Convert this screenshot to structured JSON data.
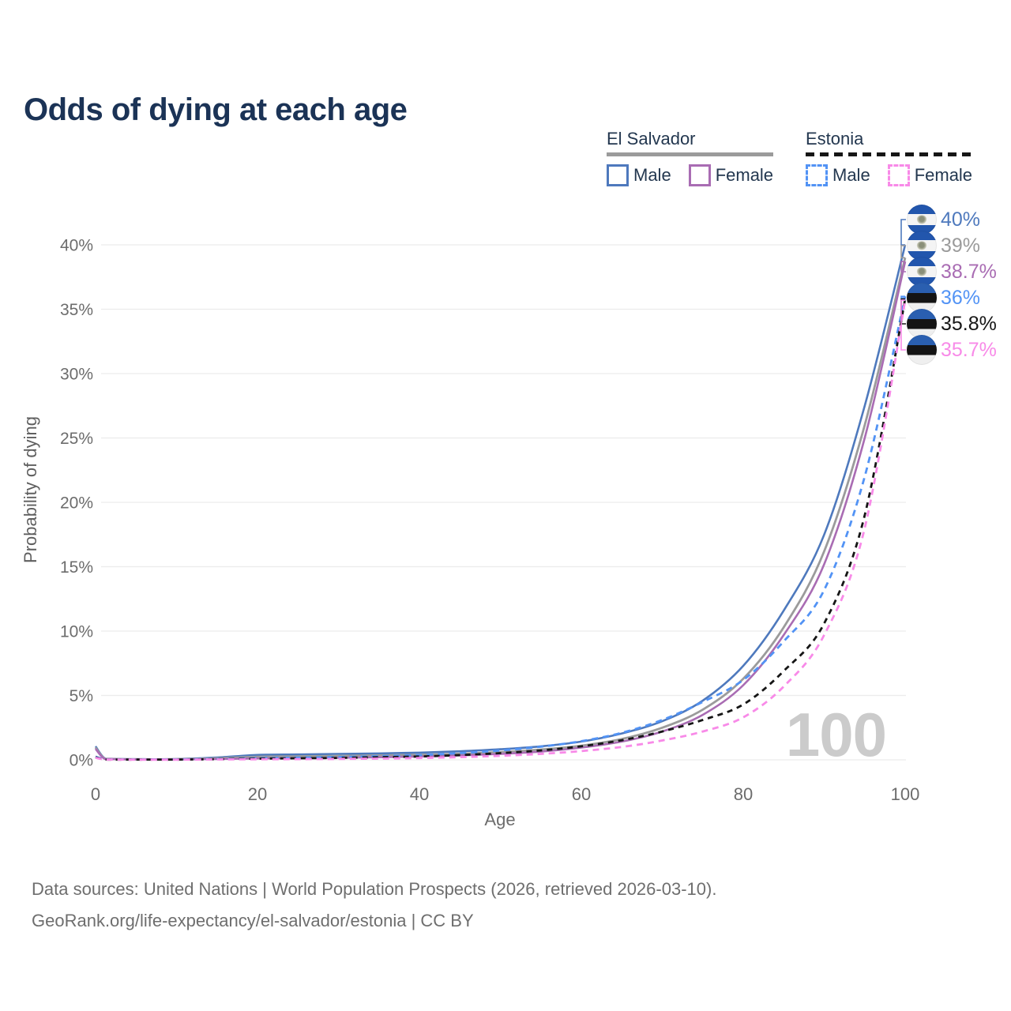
{
  "title": "Odds of dying at each age",
  "legend": {
    "groups": [
      {
        "country": "El Salvador",
        "line_style": "solid",
        "underline_color": "#9b9b9b",
        "items": [
          {
            "label": "Male",
            "color": "#4e79bd"
          },
          {
            "label": "Female",
            "color": "#a96cb3"
          }
        ]
      },
      {
        "country": "Estonia",
        "line_style": "dashed",
        "underline_color": "#161616",
        "items": [
          {
            "label": "Male",
            "color": "#5293f5"
          },
          {
            "label": "Female",
            "color": "#f88ae8"
          }
        ]
      }
    ]
  },
  "chart_data": {
    "type": "line",
    "title": "Odds of dying at each age",
    "xlabel": "Age",
    "ylabel": "Probability of dying",
    "xlim": [
      0,
      100
    ],
    "ylim": [
      0,
      43
    ],
    "grid": true,
    "watermark": "100",
    "x_ticks": [
      0,
      20,
      40,
      60,
      80,
      100
    ],
    "y_ticks": [
      {
        "v": 0,
        "label": "0%"
      },
      {
        "v": 5,
        "label": "5%"
      },
      {
        "v": 10,
        "label": "10%"
      },
      {
        "v": 15,
        "label": "15%"
      },
      {
        "v": 20,
        "label": "20%"
      },
      {
        "v": 25,
        "label": "25%"
      },
      {
        "v": 30,
        "label": "30%"
      },
      {
        "v": 35,
        "label": "35%"
      },
      {
        "v": 40,
        "label": "40%"
      }
    ],
    "ages": [
      0,
      1,
      2,
      5,
      10,
      15,
      20,
      25,
      30,
      35,
      40,
      45,
      50,
      55,
      60,
      65,
      70,
      75,
      80,
      85,
      90,
      95,
      100
    ],
    "series": [
      {
        "id": "el-salvador-male",
        "country": "El Salvador",
        "sex": "Male",
        "color": "#4e79bd",
        "dash": null,
        "width": 2.6,
        "end_label": "40%",
        "values": [
          1.05,
          0.18,
          0.08,
          0.05,
          0.06,
          0.18,
          0.38,
          0.42,
          0.46,
          0.5,
          0.56,
          0.66,
          0.82,
          1.05,
          1.42,
          2.05,
          3.0,
          4.6,
          7.3,
          11.6,
          17.5,
          27.5,
          40
        ]
      },
      {
        "id": "el-salvador-total",
        "country": "El Salvador",
        "sex": "Both",
        "color": "#9b9b9b",
        "dash": null,
        "width": 2.8,
        "end_label": "39%",
        "values": [
          0.95,
          0.15,
          0.07,
          0.04,
          0.05,
          0.12,
          0.24,
          0.27,
          0.3,
          0.34,
          0.39,
          0.47,
          0.6,
          0.8,
          1.1,
          1.62,
          2.5,
          3.9,
          6.3,
          10.3,
          16.2,
          26.0,
          39
        ]
      },
      {
        "id": "el-salvador-female",
        "country": "El Salvador",
        "sex": "Female",
        "color": "#a96cb3",
        "dash": null,
        "width": 2.6,
        "end_label": "38.7%",
        "values": [
          0.85,
          0.12,
          0.06,
          0.035,
          0.03,
          0.07,
          0.11,
          0.13,
          0.16,
          0.2,
          0.26,
          0.34,
          0.46,
          0.64,
          0.95,
          1.42,
          2.2,
          3.5,
          5.8,
          9.7,
          15.2,
          25.0,
          38.7
        ]
      },
      {
        "id": "estonia-male",
        "country": "Estonia",
        "sex": "Male",
        "color": "#5293f5",
        "dash": "8 6",
        "width": 2.8,
        "end_label": "36%",
        "values": [
          0.25,
          0.05,
          0.03,
          0.025,
          0.03,
          0.07,
          0.13,
          0.17,
          0.22,
          0.28,
          0.37,
          0.52,
          0.73,
          1.02,
          1.45,
          2.1,
          3.1,
          4.5,
          6.2,
          9.2,
          13.2,
          22.0,
          36
        ]
      },
      {
        "id": "estonia-total",
        "country": "Estonia",
        "sex": "Both",
        "color": "#161616",
        "dash": "7 6",
        "width": 2.8,
        "end_label": "35.8%",
        "values": [
          0.2,
          0.04,
          0.02,
          0.02,
          0.02,
          0.05,
          0.09,
          0.12,
          0.15,
          0.2,
          0.26,
          0.37,
          0.52,
          0.73,
          1.05,
          1.52,
          2.2,
          3.1,
          4.3,
          6.9,
          10.6,
          19.0,
          35.8
        ]
      },
      {
        "id": "estonia-female",
        "country": "Estonia",
        "sex": "Female",
        "color": "#f88ae8",
        "dash": "8 6",
        "width": 2.8,
        "end_label": "35.7%",
        "values": [
          0.16,
          0.03,
          0.02,
          0.015,
          0.015,
          0.03,
          0.045,
          0.055,
          0.07,
          0.1,
          0.14,
          0.21,
          0.31,
          0.46,
          0.68,
          1.0,
          1.5,
          2.2,
          3.3,
          5.7,
          9.7,
          18.0,
          35.7
        ]
      }
    ]
  },
  "footer": {
    "line1": "Data sources: United Nations | World Population Prospects (2026, retrieved 2026-03-10).",
    "line2": "GeoRank.org/life-expectancy/el-salvador/estonia | CC BY"
  }
}
